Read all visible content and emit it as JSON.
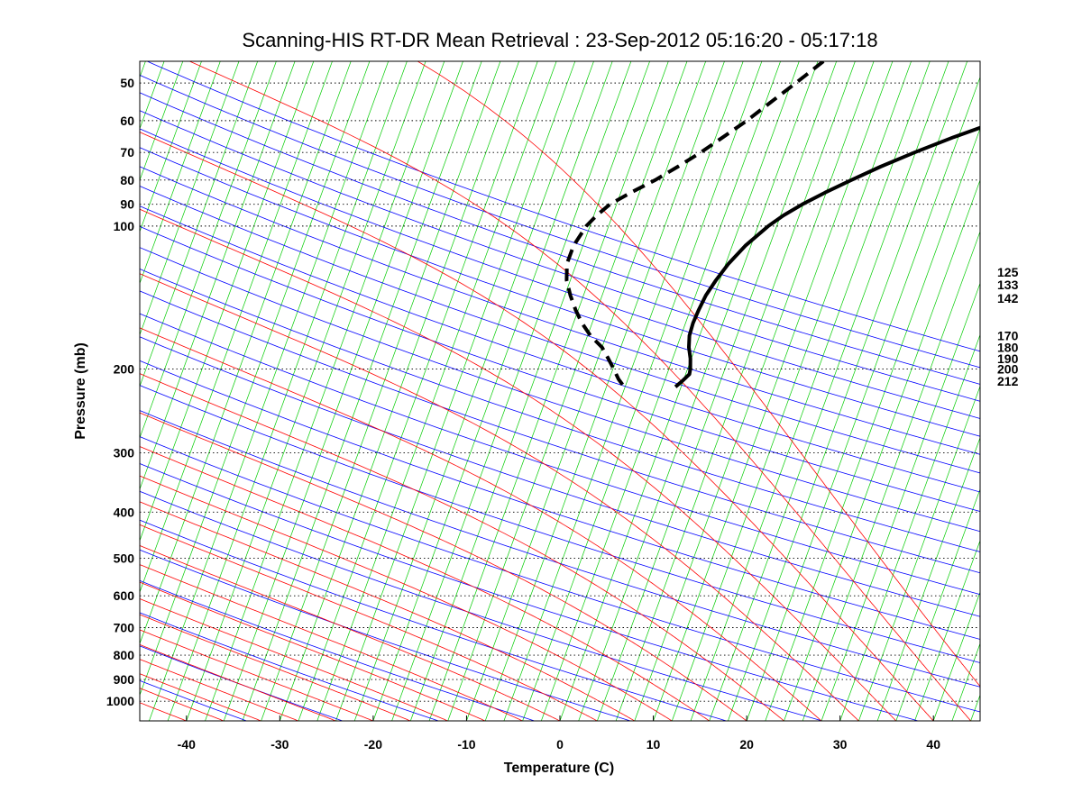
{
  "chart_data": {
    "type": "line",
    "title": "Scanning-HIS RT-DR Mean Retrieval : 23-Sep-2012 05:16:20 - 05:17:18",
    "xlabel": "Temperature (C)",
    "ylabel": "Pressure (mb)",
    "xlim": [
      -45,
      45
    ],
    "ylim": [
      1100,
      45
    ],
    "y_scale": "log",
    "skew": "skew-T",
    "grid": true,
    "x_ticks": [
      "-40",
      "-30",
      "-20",
      "-10",
      "0",
      "10",
      "20",
      "30",
      "40"
    ],
    "y_ticks": [
      "50",
      "60",
      "70",
      "80",
      "90",
      "100",
      "200",
      "300",
      "400",
      "500",
      "600",
      "700",
      "800",
      "900",
      "1000"
    ],
    "right_labels": [
      "125",
      "133",
      "142",
      "170",
      "180",
      "190",
      "200",
      "212"
    ],
    "right_label_pressures": [
      125,
      133,
      142,
      170,
      180,
      190,
      200,
      212
    ],
    "background_line_colors": {
      "isotherms": "#00cc00",
      "dry_adiabats": "#0000ff",
      "moist_adiabats": "#ff0000",
      "grid": "#000000"
    },
    "series": [
      {
        "style": "solid",
        "color": "#000000",
        "points": [
          {
            "p": 45,
            "t": 37.5
          },
          {
            "p": 50,
            "t": 32.9
          },
          {
            "p": 55,
            "t": 28.4
          },
          {
            "p": 60,
            "t": 23.8
          },
          {
            "p": 65,
            "t": 19.5
          },
          {
            "p": 70,
            "t": 15.9
          },
          {
            "p": 75,
            "t": 12.8
          },
          {
            "p": 80,
            "t": 10.2
          },
          {
            "p": 85,
            "t": 7.9
          },
          {
            "p": 90,
            "t": 5.9
          },
          {
            "p": 95,
            "t": 4.3
          },
          {
            "p": 100,
            "t": 3.1
          },
          {
            "p": 110,
            "t": 1.4
          },
          {
            "p": 120,
            "t": 0.3
          },
          {
            "p": 130,
            "t": -0.4
          },
          {
            "p": 140,
            "t": -0.9
          },
          {
            "p": 150,
            "t": -1.1
          },
          {
            "p": 160,
            "t": -1.2
          },
          {
            "p": 170,
            "t": -1.1
          },
          {
            "p": 180,
            "t": -0.7
          },
          {
            "p": 190,
            "t": -0.1
          },
          {
            "p": 200,
            "t": 0.3
          },
          {
            "p": 205,
            "t": 0.4
          },
          {
            "p": 212,
            "t": -0.1
          },
          {
            "p": 218,
            "t": -0.6
          }
        ]
      },
      {
        "style": "dashed",
        "color": "#000000",
        "points": [
          {
            "p": 45,
            "t": 2.6
          },
          {
            "p": 50,
            "t": 0.5
          },
          {
            "p": 55,
            "t": -1.5
          },
          {
            "p": 60,
            "t": -3.3
          },
          {
            "p": 65,
            "t": -5.2
          },
          {
            "p": 70,
            "t": -7.0
          },
          {
            "p": 75,
            "t": -8.9
          },
          {
            "p": 80,
            "t": -10.8
          },
          {
            "p": 85,
            "t": -12.9
          },
          {
            "p": 90,
            "t": -14.7
          },
          {
            "p": 95,
            "t": -15.7
          },
          {
            "p": 100,
            "t": -16.4
          },
          {
            "p": 110,
            "t": -17.0
          },
          {
            "p": 120,
            "t": -17.0
          },
          {
            "p": 130,
            "t": -16.4
          },
          {
            "p": 140,
            "t": -15.4
          },
          {
            "p": 150,
            "t": -14.3
          },
          {
            "p": 160,
            "t": -13.1
          },
          {
            "p": 170,
            "t": -11.7
          },
          {
            "p": 180,
            "t": -10.0
          },
          {
            "p": 190,
            "t": -8.9
          },
          {
            "p": 200,
            "t": -7.9
          },
          {
            "p": 210,
            "t": -7.0
          },
          {
            "p": 218,
            "t": -6.1
          }
        ]
      }
    ]
  }
}
